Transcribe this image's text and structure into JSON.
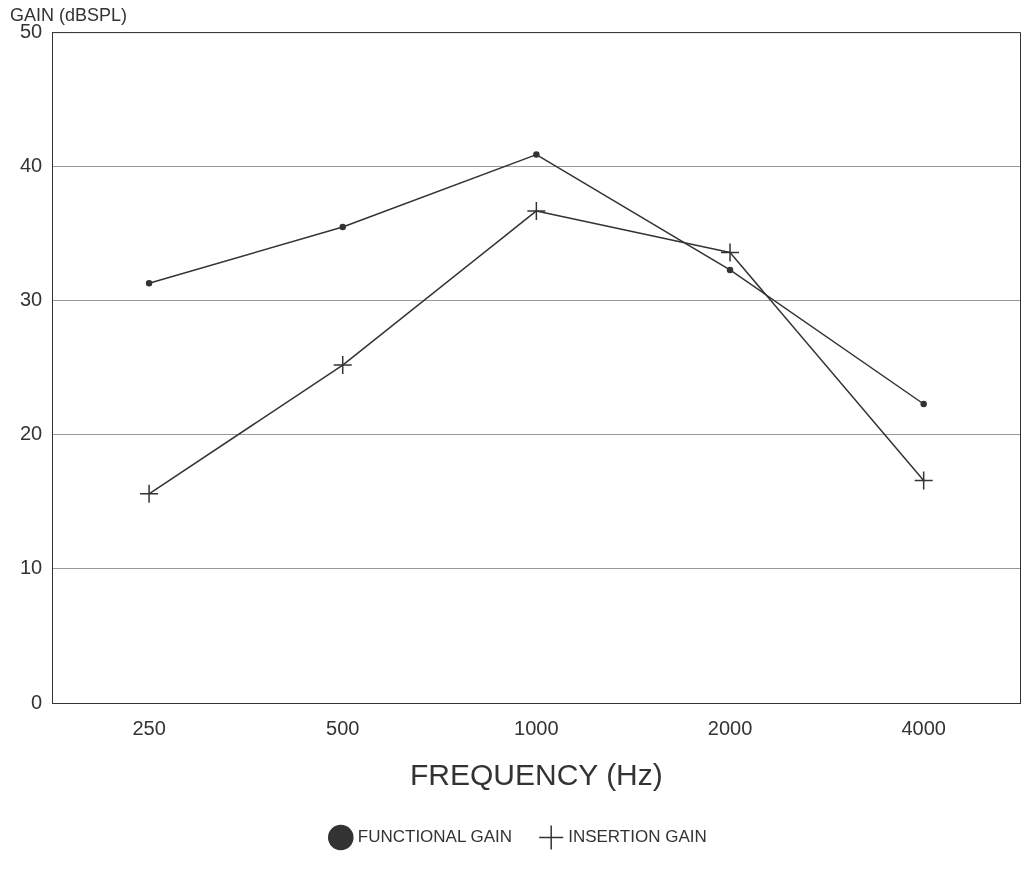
{
  "chart_data": {
    "type": "line",
    "ylabel": "GAIN (dBSPL)",
    "xlabel": "FREQUENCY (Hz)",
    "categories": [
      "250",
      "500",
      "1000",
      "2000",
      "4000"
    ],
    "series": [
      {
        "name": "FUNCTIONAL GAIN",
        "color": "#333333",
        "marker": "circle",
        "values": [
          31.3,
          35.5,
          40.9,
          32.3,
          22.3
        ]
      },
      {
        "name": "INSERTION GAIN",
        "color": "#333333",
        "marker": "cross",
        "values": [
          15.6,
          25.2,
          36.7,
          33.6,
          16.6
        ]
      }
    ],
    "ylim": [
      0,
      50
    ],
    "yticks": [
      0,
      10,
      20,
      30,
      40,
      50
    ],
    "grid": "y",
    "legend": "bottom",
    "line_style": "solid"
  }
}
